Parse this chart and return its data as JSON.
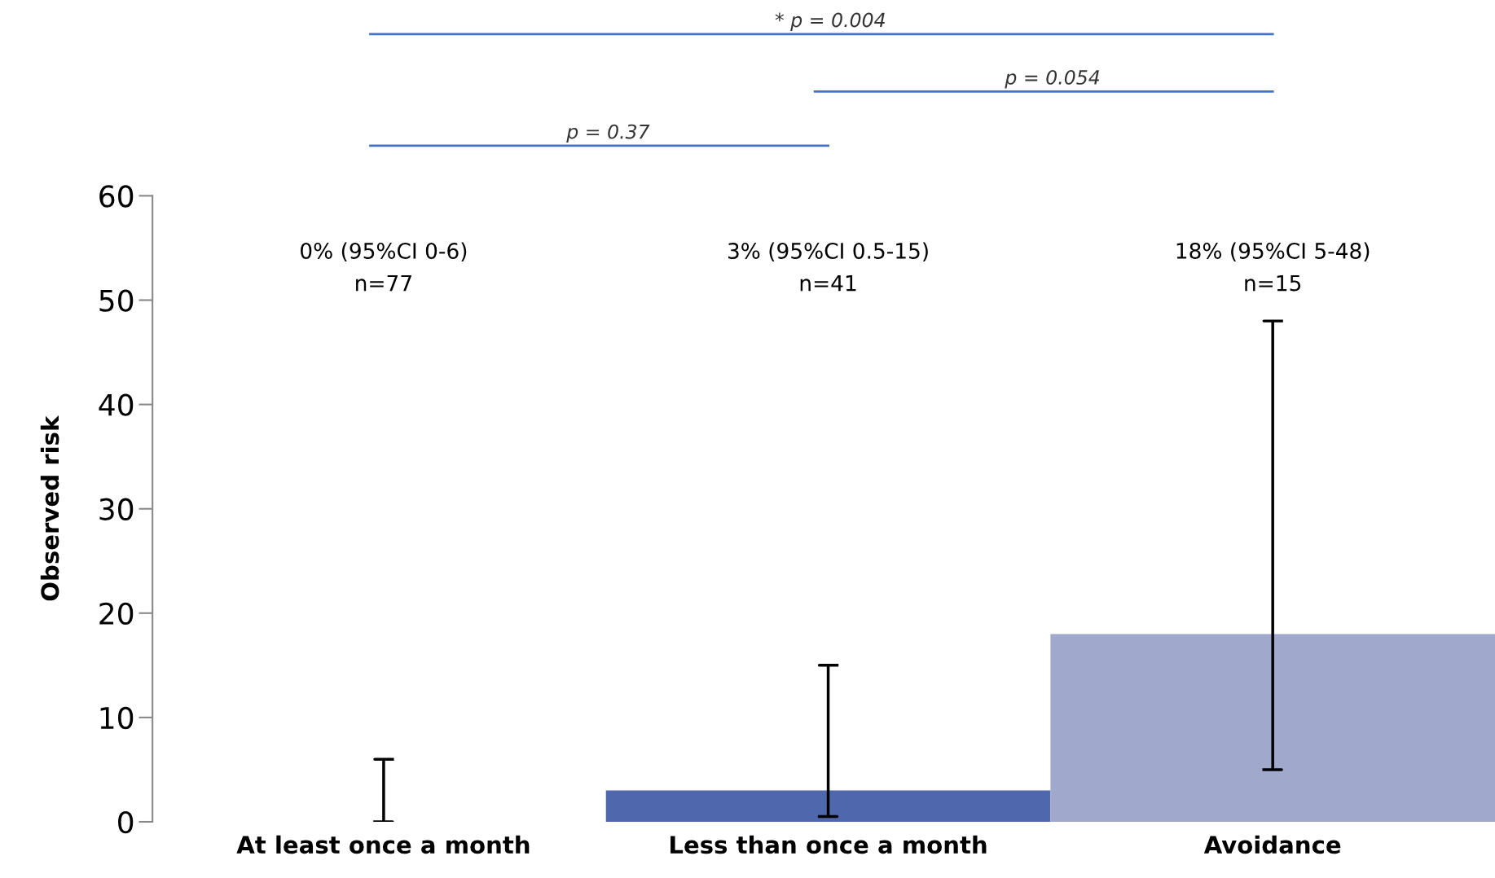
{
  "chart_data": {
    "type": "bar",
    "ylabel": "Observed risk",
    "categories": [
      "At least once a month",
      "Less than once a month",
      "Avoidance"
    ],
    "values": [
      0,
      3,
      18
    ],
    "colors": [
      "#4f67ad",
      "#4f67ad",
      "#a0a8cc"
    ],
    "errors": [
      [
        0,
        6
      ],
      [
        0.5,
        15
      ],
      [
        5,
        48
      ]
    ],
    "ylim": [
      0,
      60
    ],
    "yticks": [
      0,
      10,
      20,
      30,
      40,
      50,
      60
    ],
    "annotations": [
      "0% (95%CI 0-6)\nn=77",
      "3% (95%CI 0.5-15)\nn=41",
      "18% (95%CI 5-48)\nn=15",
      "* p = 0.004",
      "p = 0.054",
      "p = 0.37"
    ]
  }
}
